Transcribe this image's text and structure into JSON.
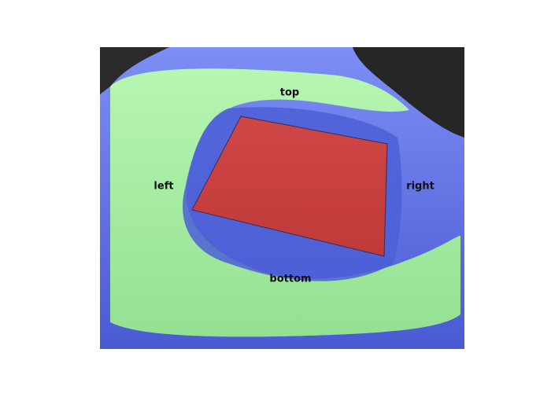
{
  "labels": {
    "top": "top",
    "left": "left",
    "right": "right",
    "bottom": "bottom"
  }
}
